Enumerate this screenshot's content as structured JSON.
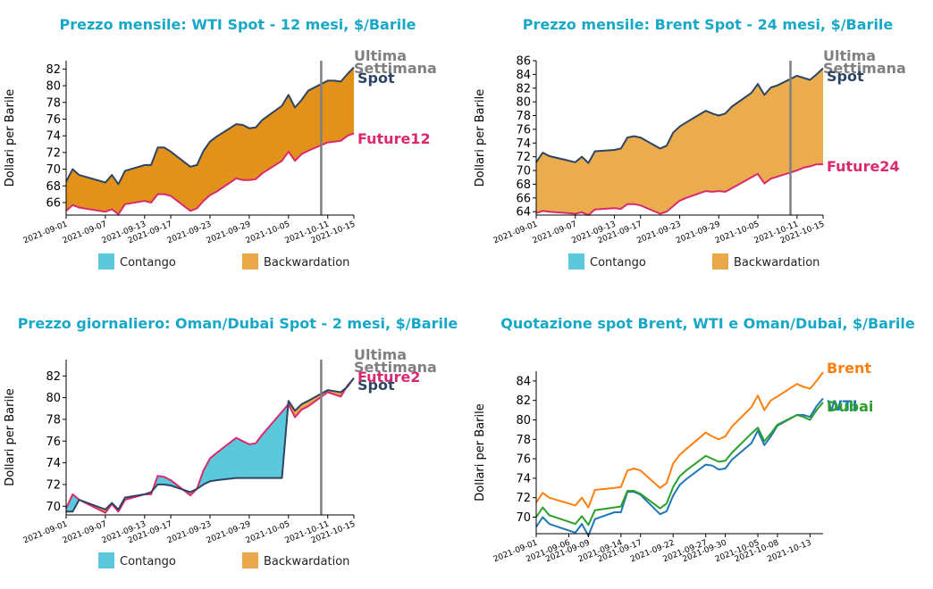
{
  "chart_data": [
    {
      "type": "area",
      "title": "Prezzo mensile: WTI Spot - 12 mesi, $/Barile",
      "ylabel": "Dollari per Barile",
      "ylim": [
        64.5,
        83
      ],
      "yticks": [
        66,
        68,
        70,
        72,
        74,
        76,
        78,
        80,
        82
      ],
      "xticks": [
        "2021-09-01",
        "2021-09-07",
        "2021-09-13",
        "2021-09-17",
        "2021-09-23",
        "2021-09-29",
        "2021-10-05",
        "2021-10-11",
        "2021-10-15"
      ],
      "xlim": [
        "2021-09-01",
        "2021-10-15"
      ],
      "dates": [
        "2021-09-01",
        "2021-09-02",
        "2021-09-03",
        "2021-09-07",
        "2021-09-08",
        "2021-09-09",
        "2021-09-10",
        "2021-09-13",
        "2021-09-14",
        "2021-09-15",
        "2021-09-16",
        "2021-09-17",
        "2021-09-20",
        "2021-09-21",
        "2021-09-22",
        "2021-09-23",
        "2021-09-24",
        "2021-09-27",
        "2021-09-28",
        "2021-09-29",
        "2021-09-30",
        "2021-10-01",
        "2021-10-04",
        "2021-10-05",
        "2021-10-06",
        "2021-10-07",
        "2021-10-08",
        "2021-10-11",
        "2021-10-12",
        "2021-10-13",
        "2021-10-14",
        "2021-10-15"
      ],
      "series": [
        {
          "name": "Spot",
          "color": "#2d4463",
          "values": [
            68.5,
            70.0,
            69.3,
            68.4,
            69.3,
            68.2,
            69.8,
            70.5,
            70.5,
            72.6,
            72.6,
            72.1,
            70.3,
            70.5,
            72.2,
            73.3,
            73.9,
            75.4,
            75.3,
            74.9,
            75.0,
            75.9,
            77.6,
            78.9,
            77.4,
            78.3,
            79.4,
            80.6,
            80.6,
            80.5,
            81.4,
            82.2
          ]
        },
        {
          "name": "Future12",
          "color": "#d9296f",
          "values": [
            65.0,
            65.7,
            65.4,
            64.9,
            65.2,
            64.6,
            65.8,
            66.2,
            66.0,
            67.0,
            67.0,
            66.8,
            65.0,
            65.3,
            66.2,
            66.9,
            67.3,
            68.9,
            68.7,
            68.7,
            68.8,
            69.5,
            71.0,
            72.1,
            71.0,
            71.8,
            72.2,
            73.2,
            73.3,
            73.4,
            74.0,
            74.3
          ]
        }
      ],
      "vline": "2021-10-10",
      "annotations": [
        "Ultima",
        "Settimana"
      ],
      "legend": [
        {
          "label": "Contango",
          "color": "#5bc8dc"
        },
        {
          "label": "Backwardation",
          "color": "#eaa84a"
        }
      ],
      "legend_position": "bottom",
      "fill_color": "#e2921a"
    },
    {
      "type": "area",
      "title": "Prezzo mensile: Brent Spot - 24 mesi, $/Barile",
      "ylabel": "Dollari per Barile",
      "ylim": [
        63.5,
        86
      ],
      "yticks": [
        64,
        66,
        68,
        70,
        72,
        74,
        76,
        78,
        80,
        82,
        84,
        86
      ],
      "xticks": [
        "2021-09-01",
        "2021-09-07",
        "2021-09-13",
        "2021-09-17",
        "2021-09-23",
        "2021-09-29",
        "2021-10-05",
        "2021-10-11",
        "2021-10-15"
      ],
      "xlim": [
        "2021-09-01",
        "2021-10-15"
      ],
      "dates": [
        "2021-09-01",
        "2021-09-02",
        "2021-09-03",
        "2021-09-07",
        "2021-09-08",
        "2021-09-09",
        "2021-09-10",
        "2021-09-13",
        "2021-09-14",
        "2021-09-15",
        "2021-09-16",
        "2021-09-17",
        "2021-09-20",
        "2021-09-21",
        "2021-09-22",
        "2021-09-23",
        "2021-09-24",
        "2021-09-27",
        "2021-09-28",
        "2021-09-29",
        "2021-09-30",
        "2021-10-01",
        "2021-10-04",
        "2021-10-05",
        "2021-10-06",
        "2021-10-07",
        "2021-10-08",
        "2021-10-11",
        "2021-10-12",
        "2021-10-13",
        "2021-10-14",
        "2021-10-15"
      ],
      "series": [
        {
          "name": "Spot",
          "color": "#2d4463",
          "values": [
            71.2,
            72.6,
            72.1,
            71.2,
            72.0,
            71.1,
            72.8,
            73.0,
            73.2,
            74.8,
            75.0,
            74.8,
            73.2,
            73.6,
            75.5,
            76.4,
            77.0,
            78.7,
            78.3,
            78.0,
            78.3,
            79.3,
            81.3,
            82.6,
            81.0,
            82.1,
            82.4,
            83.8,
            83.5,
            83.2,
            84.0,
            84.9
          ]
        },
        {
          "name": "Future24",
          "color": "#d9296f",
          "values": [
            63.8,
            64.1,
            64.0,
            63.7,
            63.9,
            63.5,
            64.3,
            64.5,
            64.4,
            65.1,
            65.1,
            64.9,
            63.7,
            64.0,
            64.8,
            65.6,
            66.0,
            67.0,
            66.9,
            67.0,
            66.9,
            67.4,
            69.0,
            69.5,
            68.1,
            68.8,
            69.1,
            70.0,
            70.4,
            70.6,
            70.9,
            70.9
          ]
        }
      ],
      "vline": "2021-10-10",
      "annotations": [
        "Ultima",
        "Settimana"
      ],
      "legend": [
        {
          "label": "Contango",
          "color": "#5bc8dc"
        },
        {
          "label": "Backwardation",
          "color": "#eaa84a"
        }
      ],
      "legend_position": "bottom",
      "fill_color": "#eaac4d"
    },
    {
      "type": "area",
      "title": "Prezzo giornaliero: Oman/Dubai Spot - 2 mesi, $/Barile",
      "ylabel": "Dollari per Barile",
      "ylim": [
        69.2,
        83.5
      ],
      "yticks": [
        70,
        72,
        74,
        76,
        78,
        80,
        82
      ],
      "xticks": [
        "2021-09-01",
        "2021-09-07",
        "2021-09-13",
        "2021-09-17",
        "2021-09-23",
        "2021-09-29",
        "2021-10-05",
        "2021-10-11",
        "2021-10-15"
      ],
      "xlim": [
        "2021-09-01",
        "2021-10-15"
      ],
      "dates": [
        "2021-09-01",
        "2021-09-02",
        "2021-09-03",
        "2021-09-07",
        "2021-09-08",
        "2021-09-09",
        "2021-09-10",
        "2021-09-13",
        "2021-09-14",
        "2021-09-15",
        "2021-09-16",
        "2021-09-17",
        "2021-09-20",
        "2021-09-21",
        "2021-09-22",
        "2021-09-23",
        "2021-09-24",
        "2021-09-27",
        "2021-09-28",
        "2021-09-29",
        "2021-09-30",
        "2021-10-01",
        "2021-10-04",
        "2021-10-05",
        "2021-10-06",
        "2021-10-07",
        "2021-10-08",
        "2021-10-11",
        "2021-10-12",
        "2021-10-13",
        "2021-10-14",
        "2021-10-15"
      ],
      "series": [
        {
          "name": "Spot",
          "color": "#2d4463",
          "values": [
            69.5,
            69.5,
            70.6,
            69.7,
            70.3,
            69.7,
            70.8,
            71.1,
            71.3,
            72.0,
            72.0,
            71.9,
            71.3,
            71.6,
            72.0,
            72.3,
            72.4,
            72.6,
            72.6,
            72.6,
            72.6,
            72.6,
            72.6,
            79.7,
            78.8,
            79.4,
            79.7,
            80.7,
            80.6,
            80.5,
            81.0,
            81.8
          ]
        },
        {
          "name": "Future2",
          "color": "#d9296f",
          "values": [
            69.8,
            71.1,
            70.6,
            69.4,
            70.2,
            69.5,
            70.6,
            71.1,
            71.1,
            72.8,
            72.7,
            72.4,
            71.0,
            71.6,
            73.3,
            74.4,
            74.9,
            76.3,
            76.0,
            75.7,
            75.8,
            76.6,
            78.7,
            79.4,
            78.2,
            78.9,
            79.2,
            80.5,
            80.3,
            80.1,
            81.1,
            81.8
          ]
        }
      ],
      "vline": "2021-10-10",
      "annotations": [
        "Ultima",
        "Settimana"
      ],
      "legend": [
        {
          "label": "Contango",
          "color": "#5bc8dc"
        },
        {
          "label": "Backwardation",
          "color": "#eaa84a"
        }
      ],
      "legend_position": "bottom",
      "contango_color": "#5bc8dc",
      "backwardation_color": "#eaa84a"
    },
    {
      "type": "line",
      "title": "Quotazione spot Brent, WTI e Oman/Dubai, $/Barile",
      "ylabel": "Dollari per Barile",
      "ylim": [
        68.3,
        85
      ],
      "yticks": [
        70,
        72,
        74,
        76,
        78,
        80,
        82,
        84
      ],
      "xticks": [
        "2021-09-01",
        "2021-09-06",
        "2021-09-09",
        "2021-09-14",
        "2021-09-17",
        "2021-09-22",
        "2021-09-27",
        "2021-09-30",
        "2021-10-05",
        "2021-10-08",
        "2021-10-13"
      ],
      "xlim": [
        "2021-09-01",
        "2021-10-15"
      ],
      "dates": [
        "2021-09-01",
        "2021-09-02",
        "2021-09-03",
        "2021-09-07",
        "2021-09-08",
        "2021-09-09",
        "2021-09-10",
        "2021-09-13",
        "2021-09-14",
        "2021-09-15",
        "2021-09-16",
        "2021-09-17",
        "2021-09-20",
        "2021-09-21",
        "2021-09-22",
        "2021-09-23",
        "2021-09-24",
        "2021-09-27",
        "2021-09-28",
        "2021-09-29",
        "2021-09-30",
        "2021-10-01",
        "2021-10-04",
        "2021-10-05",
        "2021-10-06",
        "2021-10-07",
        "2021-10-08",
        "2021-10-11",
        "2021-10-12",
        "2021-10-13",
        "2021-10-14",
        "2021-10-15"
      ],
      "series": [
        {
          "name": "Brent",
          "color": "#ff7f0e",
          "values": [
            71.5,
            72.5,
            72.0,
            71.2,
            72.0,
            71.0,
            72.8,
            73.0,
            73.1,
            74.8,
            75.0,
            74.8,
            73.0,
            73.5,
            75.5,
            76.4,
            77.0,
            78.7,
            78.3,
            78.0,
            78.3,
            79.3,
            81.3,
            82.5,
            81.0,
            82.0,
            82.4,
            83.7,
            83.4,
            83.2,
            84.0,
            84.9
          ]
        },
        {
          "name": "WTI",
          "color": "#1f77b4",
          "values": [
            69.0,
            70.0,
            69.3,
            68.4,
            69.3,
            68.1,
            69.8,
            70.5,
            70.5,
            72.6,
            72.6,
            72.3,
            70.3,
            70.6,
            72.2,
            73.3,
            73.9,
            75.4,
            75.3,
            74.9,
            75.0,
            75.9,
            77.6,
            78.9,
            77.4,
            78.3,
            79.4,
            80.5,
            80.5,
            80.3,
            81.4,
            82.2
          ]
        },
        {
          "name": "Dubai",
          "color": "#2ca02c",
          "values": [
            70.0,
            71.0,
            70.2,
            69.3,
            70.1,
            69.2,
            70.7,
            71.0,
            71.1,
            72.7,
            72.7,
            72.4,
            70.9,
            71.4,
            73.1,
            74.2,
            74.8,
            76.3,
            76.0,
            75.7,
            75.8,
            76.6,
            78.6,
            79.2,
            77.8,
            78.6,
            79.5,
            80.5,
            80.3,
            80.0,
            81.0,
            81.8
          ]
        }
      ],
      "legend_position": "right, at line ends",
      "grid": false
    }
  ]
}
